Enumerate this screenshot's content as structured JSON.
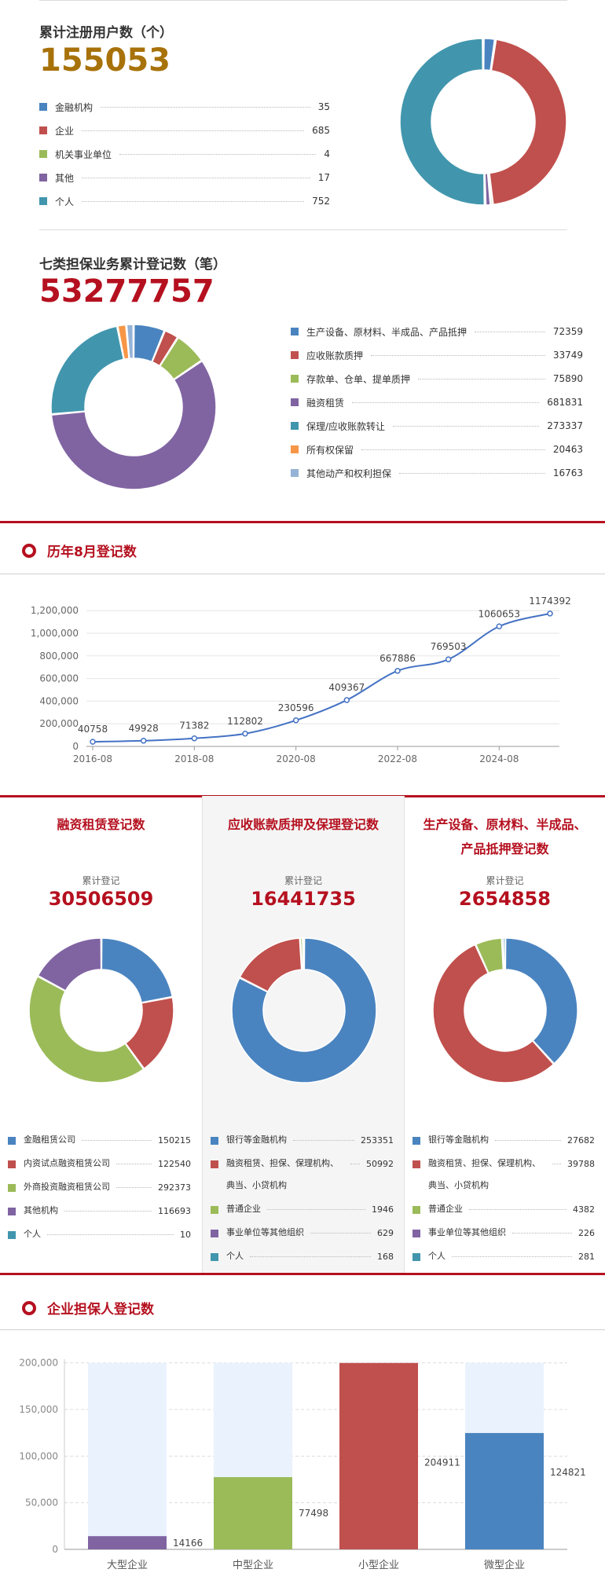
{
  "registered_users": {
    "title": "累计注册用户数（个）",
    "total": "155053",
    "legend": [
      {
        "label": "金融机构",
        "value": "35",
        "color": "#4a84c0"
      },
      {
        "label": "企业",
        "value": "685",
        "color": "#c0504d"
      },
      {
        "label": "机关事业单位",
        "value": "4",
        "color": "#9bbb59"
      },
      {
        "label": "其他",
        "value": "17",
        "color": "#8064a2"
      },
      {
        "label": "个人",
        "value": "752",
        "color": "#4196ad"
      }
    ]
  },
  "guarantee_types": {
    "title": "七类担保业务累计登记数（笔）",
    "total": "53277757",
    "legend": [
      {
        "label": "生产设备、原材料、半成品、产品抵押",
        "value": "72359",
        "color": "#4a84c0"
      },
      {
        "label": "应收账款质押",
        "value": "33749",
        "color": "#c0504d"
      },
      {
        "label": "存款单、仓单、提单质押",
        "value": "75890",
        "color": "#9bbb59"
      },
      {
        "label": "融资租赁",
        "value": "681831",
        "color": "#8064a2"
      },
      {
        "label": "保理/应收账款转让",
        "value": "273337",
        "color": "#4196ad"
      },
      {
        "label": "所有权保留",
        "value": "20463",
        "color": "#f79646"
      },
      {
        "label": "其他动产和权利担保",
        "value": "16763",
        "color": "#95b3d7"
      }
    ]
  },
  "august_section": {
    "title": "历年8月登记数"
  },
  "chart_data": [
    {
      "type": "line",
      "x": [
        "2016-08",
        "2017-08",
        "2018-08",
        "2019-08",
        "2020-08",
        "2021-08",
        "2022-08",
        "2023-08",
        "2024-08",
        "2025-08"
      ],
      "values": [
        40758,
        49928,
        71382,
        112802,
        230596,
        409367,
        667886,
        769503,
        1060653,
        1174392
      ],
      "x_tick_labels": [
        "2016-08",
        "2018-08",
        "2020-08",
        "2022-08",
        "2024-08"
      ],
      "y_tick_labels": [
        "0",
        "200,000",
        "400,000",
        "600,000",
        "800,000",
        "1,000,000",
        "1,200,000"
      ],
      "ylim": [
        0,
        1250000
      ],
      "color": "#4472c4",
      "grid": true
    },
    {
      "type": "bar",
      "categories": [
        "大型企业",
        "中型企业",
        "小型企业",
        "微型企业"
      ],
      "values": [
        14166,
        77498,
        204911,
        124821
      ],
      "colors": [
        "#8064a2",
        "#9bbb59",
        "#c0504d",
        "#4a84c0"
      ],
      "y_tick_labels": [
        "0",
        "50,000",
        "100,000",
        "150,000",
        "200,000"
      ],
      "ylim": [
        0,
        200000
      ],
      "background_bars": true,
      "grid": true
    }
  ],
  "three_cols": [
    {
      "title": "融资租赁登记数",
      "subtitle": "累计登记",
      "total": "30506509",
      "legend": [
        {
          "label": "金融租赁公司",
          "value": "150215",
          "color": "#4a84c0"
        },
        {
          "label": "内资试点融资租赁公司",
          "value": "122540",
          "color": "#c0504d"
        },
        {
          "label": "外商投资融资租赁公司",
          "value": "292373",
          "color": "#9bbb59"
        },
        {
          "label": "其他机构",
          "value": "116693",
          "color": "#8064a2"
        },
        {
          "label": "个人",
          "value": "10",
          "color": "#4196ad"
        }
      ]
    },
    {
      "title": "应收账款质押及保理登记数",
      "subtitle": "累计登记",
      "total": "16441735",
      "legend": [
        {
          "label": "银行等金融机构",
          "value": "253351",
          "color": "#4a84c0"
        },
        {
          "label": "融资租赁、担保、保理机构、典当、小贷机构",
          "value": "50992",
          "color": "#c0504d"
        },
        {
          "label": "普通企业",
          "value": "1946",
          "color": "#9bbb59"
        },
        {
          "label": "事业单位等其他组织",
          "value": "629",
          "color": "#8064a2"
        },
        {
          "label": "个人",
          "value": "168",
          "color": "#4196ad"
        }
      ]
    },
    {
      "title": "生产设备、原材料、半成品、产品抵押登记数",
      "subtitle": "累计登记",
      "total": "2654858",
      "legend": [
        {
          "label": "银行等金融机构",
          "value": "27682",
          "color": "#4a84c0"
        },
        {
          "label": "融资租赁、担保、保理机构、典当、小贷机构",
          "value": "39788",
          "color": "#c0504d"
        },
        {
          "label": "普通企业",
          "value": "4382",
          "color": "#9bbb59"
        },
        {
          "label": "事业单位等其他组织",
          "value": "226",
          "color": "#8064a2"
        },
        {
          "label": "个人",
          "value": "281",
          "color": "#4196ad"
        }
      ]
    }
  ],
  "enterprise_section": {
    "title": "企业担保人登记数"
  }
}
